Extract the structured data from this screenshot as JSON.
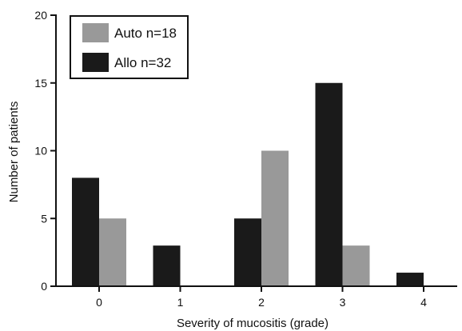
{
  "chart_data": {
    "type": "bar",
    "title": "",
    "xlabel": "Severity of mucositis (grade)",
    "ylabel": "Number of patients",
    "categories": [
      "0",
      "1",
      "2",
      "3",
      "4"
    ],
    "series": [
      {
        "name": "Allo n=32",
        "values": [
          8,
          3,
          5,
          15,
          1
        ],
        "color": "#1a1a1a"
      },
      {
        "name": "Auto n=18",
        "values": [
          5,
          0,
          10,
          3,
          0
        ],
        "color": "#999999"
      }
    ],
    "legend_order": [
      "Auto n=18",
      "Allo n=32"
    ],
    "ylim": [
      0,
      20
    ],
    "yticks": [
      0,
      5,
      10,
      15,
      20
    ],
    "grid": false,
    "legend_position": "top-left"
  }
}
